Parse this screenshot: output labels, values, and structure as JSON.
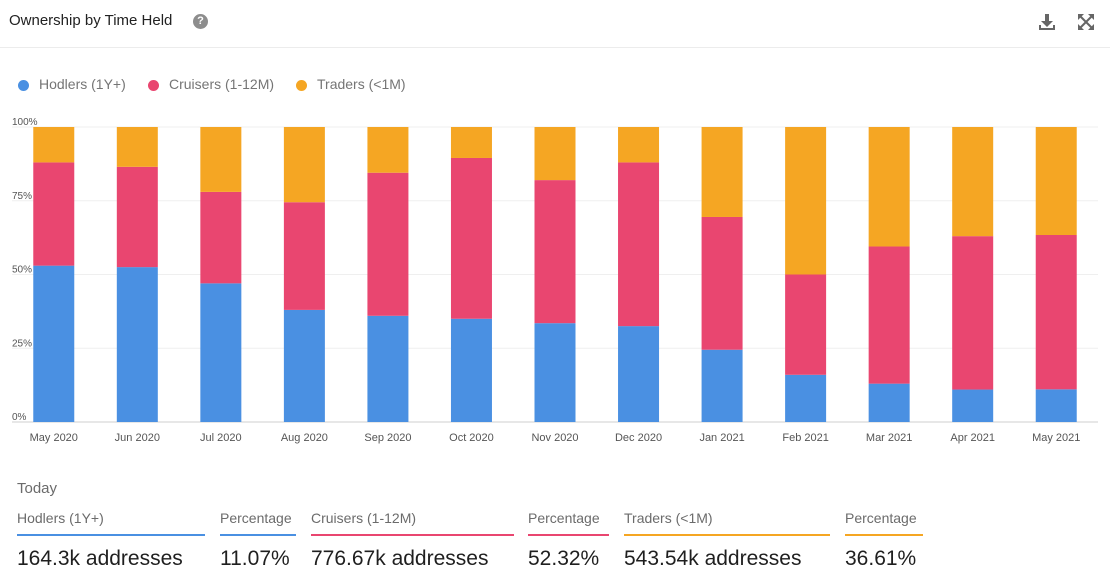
{
  "header": {
    "title": "Ownership by Time Held",
    "help_icon": "question-circle-icon",
    "download_icon": "download-icon",
    "expand_icon": "expand-icon"
  },
  "colors": {
    "hodlers": "#4a90e2",
    "cruisers": "#e94670",
    "traders": "#f5a623"
  },
  "chart_data": {
    "type": "bar",
    "stacked": true,
    "title": "",
    "xlabel": "",
    "ylabel": "",
    "ylim": [
      0,
      100
    ],
    "y_ticks": [
      "0%",
      "25%",
      "50%",
      "75%",
      "100%"
    ],
    "categories": [
      "May 2020",
      "Jun 2020",
      "Jul 2020",
      "Aug 2020",
      "Sep 2020",
      "Oct 2020",
      "Nov 2020",
      "Dec 2020",
      "Jan 2021",
      "Feb 2021",
      "Mar 2021",
      "Apr 2021",
      "May 2021"
    ],
    "series": [
      {
        "name": "Hodlers (1Y+)",
        "color": "#4a90e2",
        "values": [
          53,
          52.5,
          47,
          38,
          36,
          35,
          33.5,
          32.5,
          24.5,
          16,
          13,
          11,
          11.07
        ]
      },
      {
        "name": "Cruisers (1-12M)",
        "color": "#e94670",
        "values": [
          35,
          34,
          31,
          36.5,
          48.5,
          54.5,
          48.5,
          55.5,
          45,
          34,
          46.5,
          52,
          52.32
        ]
      },
      {
        "name": "Traders (<1M)",
        "color": "#f5a623",
        "values": [
          12,
          13.5,
          22,
          25.5,
          15.5,
          10.5,
          18,
          12,
          30.5,
          50,
          40.5,
          37,
          36.61
        ]
      }
    ],
    "grid": true,
    "legend_position": "top-left"
  },
  "today": {
    "label": "Today",
    "stats": [
      {
        "label": "Hodlers (1Y+)",
        "value": "164.3k addresses",
        "color": "#4a90e2"
      },
      {
        "label": "Percentage",
        "value": "11.07%",
        "color": "#4a90e2"
      },
      {
        "label": "Cruisers (1-12M)",
        "value": "776.67k addresses",
        "color": "#e94670"
      },
      {
        "label": "Percentage",
        "value": "52.32%",
        "color": "#e94670"
      },
      {
        "label": "Traders (<1M)",
        "value": "543.54k addresses",
        "color": "#f5a623"
      },
      {
        "label": "Percentage",
        "value": "36.61%",
        "color": "#f5a623"
      }
    ]
  }
}
